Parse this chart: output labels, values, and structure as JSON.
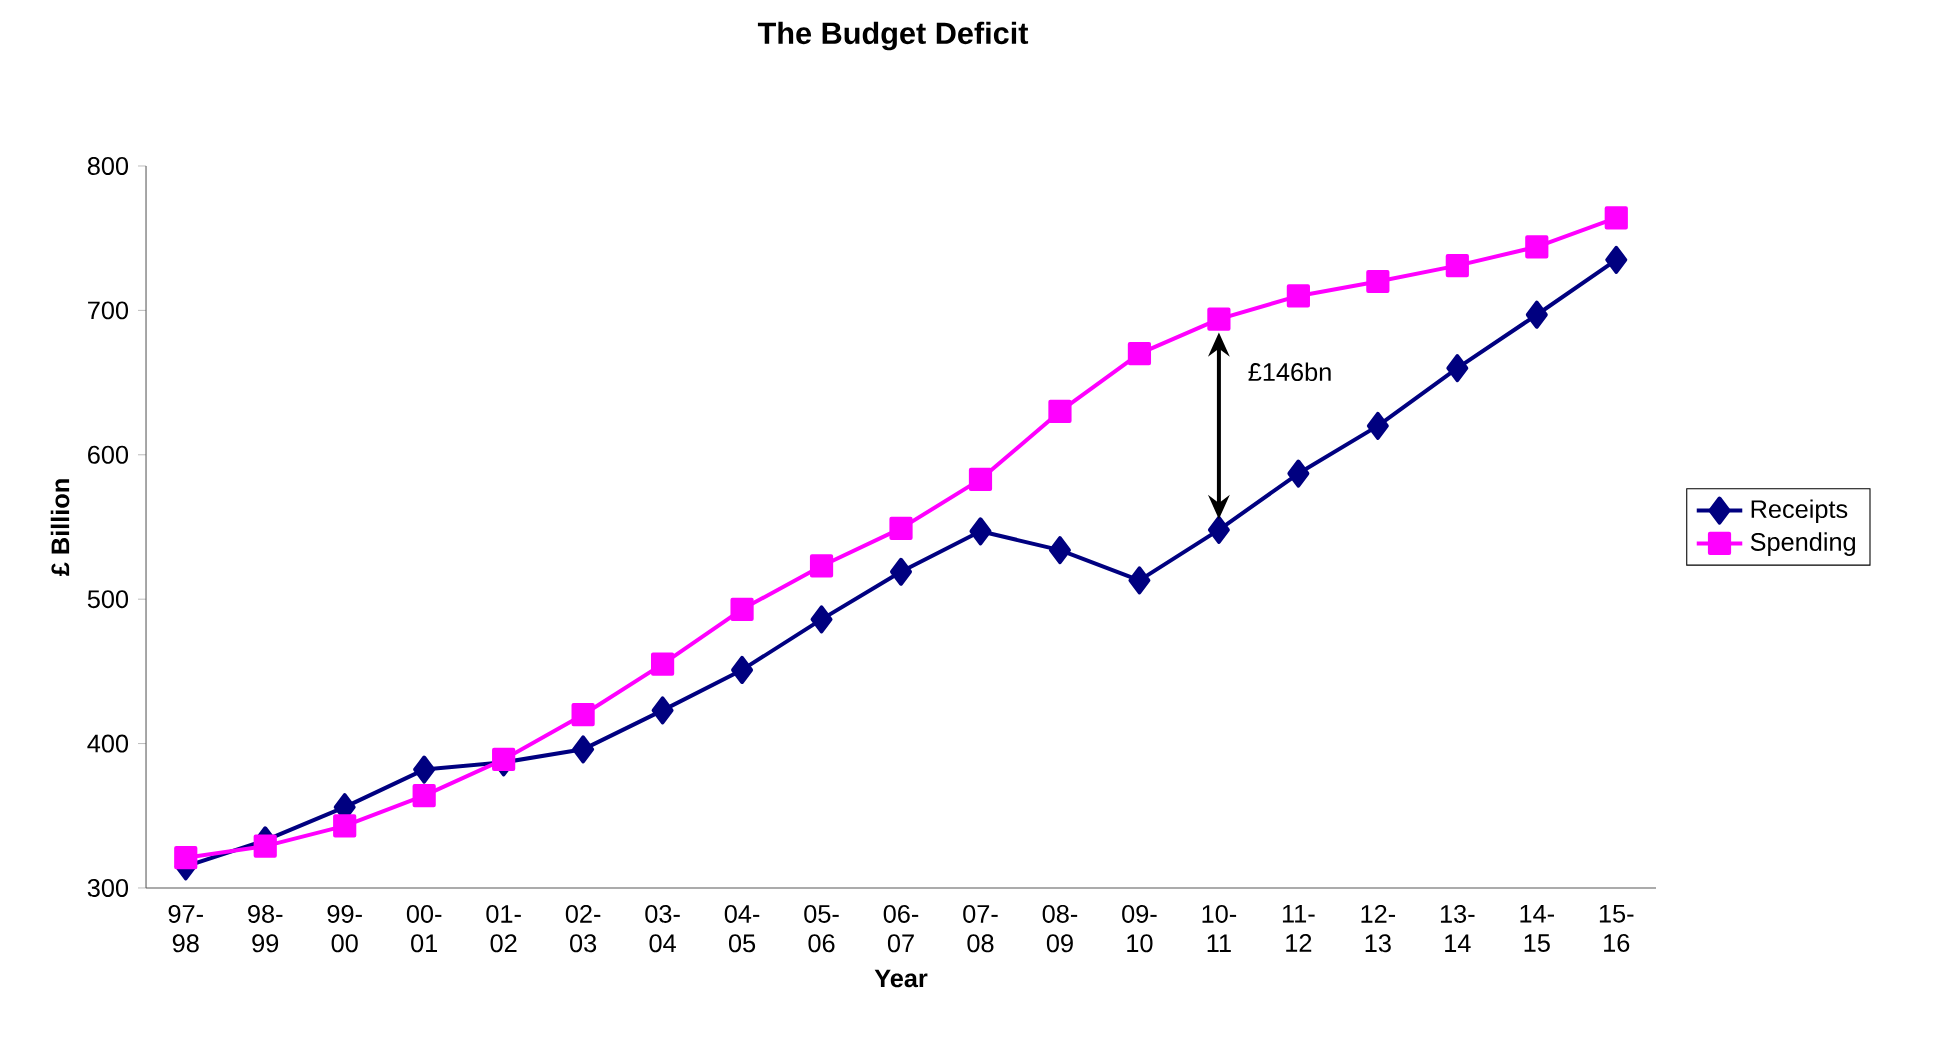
{
  "chart_data": {
    "type": "line",
    "title": "The Budget Deficit",
    "xlabel": "Year",
    "ylabel": "£ Billion",
    "categories": [
      "97-98",
      "98-99",
      "99-00",
      "00-01",
      "01-02",
      "02-03",
      "03-04",
      "04-05",
      "05-06",
      "06-07",
      "07-08",
      "08-09",
      "09-10",
      "10-11",
      "11-12",
      "12-13",
      "13-14",
      "14-15",
      "15-16"
    ],
    "series": [
      {
        "name": "Receipts",
        "color": "#000080",
        "marker": "diamond",
        "values": [
          315,
          333,
          356,
          382,
          387,
          396,
          423,
          451,
          486,
          519,
          547,
          534,
          513,
          548,
          587,
          620,
          660,
          697,
          735
        ]
      },
      {
        "name": "Spending",
        "color": "#ff00ff",
        "marker": "square",
        "values": [
          321,
          329,
          343,
          364,
          389,
          420,
          455,
          493,
          523,
          549,
          583,
          630,
          670,
          694,
          710,
          720,
          731,
          744,
          764
        ]
      }
    ],
    "ylim": [
      300,
      800
    ],
    "yticks": [
      300,
      400,
      500,
      600,
      700,
      800
    ],
    "grid": false,
    "legend": "right",
    "line_style": "solid",
    "annotations": [
      "£146bn"
    ]
  }
}
